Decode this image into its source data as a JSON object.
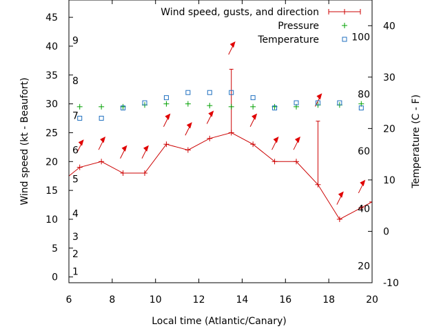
{
  "chart_data": {
    "type": "line",
    "xlabel": "Local time (Atlantic/Canary)",
    "ylabel_left": "Wind speed (kt - Beaufort)",
    "ylabel_right": "Temperature (C - F)",
    "x_ticks": [
      6,
      8,
      10,
      12,
      14,
      16,
      18,
      20
    ],
    "xlim": [
      6,
      20
    ],
    "y_left_ticks": [
      0,
      5,
      10,
      15,
      20,
      25,
      30,
      35,
      40,
      45
    ],
    "ylim_left": [
      -1,
      48
    ],
    "y_right_ticks": [
      -10,
      0,
      10,
      20,
      30,
      40
    ],
    "ylim_right": [
      -10,
      45
    ],
    "beaufort_labels": [
      {
        "label": "1",
        "kt": 1
      },
      {
        "label": "2",
        "kt": 4
      },
      {
        "label": "3",
        "kt": 7
      },
      {
        "label": "4",
        "kt": 11
      },
      {
        "label": "5",
        "kt": 17
      },
      {
        "label": "6",
        "kt": 22
      },
      {
        "label": "7",
        "kt": 28
      },
      {
        "label": "8",
        "kt": 34
      },
      {
        "label": "9",
        "kt": 41
      }
    ],
    "fahrenheit_labels": [
      {
        "label": "20",
        "celsius": -6.7
      },
      {
        "label": "40",
        "celsius": 4.4
      },
      {
        "label": "60",
        "celsius": 15.6
      },
      {
        "label": "80",
        "celsius": 26.7
      },
      {
        "label": "100",
        "celsius": 37.8
      }
    ],
    "legend_placement": "top-right",
    "series": [
      {
        "name": "Wind speed, gusts, and direction",
        "color": "#cc0000",
        "x": [
          5.5,
          6.5,
          7.5,
          8.5,
          9.5,
          10.5,
          11.5,
          12.5,
          13.5,
          14.5,
          15.5,
          16.5,
          17.5,
          18.5,
          19.5,
          20
        ],
        "values": [
          16,
          19,
          20,
          18,
          18,
          23,
          22,
          24,
          25,
          23,
          20,
          20,
          16,
          10,
          12,
          13
        ],
        "gusts": [
          {
            "x": 13.5,
            "low": 25,
            "high": 36
          },
          {
            "x": 17.5,
            "low": 16,
            "high": 27
          }
        ],
        "direction_arrows": [
          {
            "x": 6.5,
            "kt": 22.5
          },
          {
            "x": 7.5,
            "kt": 23
          },
          {
            "x": 8.5,
            "kt": 21.5
          },
          {
            "x": 9.5,
            "kt": 21.5
          },
          {
            "x": 10.5,
            "kt": 27
          },
          {
            "x": 11.5,
            "kt": 25.5
          },
          {
            "x": 12.5,
            "kt": 27.5
          },
          {
            "x": 13.5,
            "kt": 39.5
          },
          {
            "x": 14.5,
            "kt": 27
          },
          {
            "x": 15.5,
            "kt": 23
          },
          {
            "x": 16.5,
            "kt": 23
          },
          {
            "x": 17.5,
            "kt": 30.5
          },
          {
            "x": 18.5,
            "kt": 13.5
          },
          {
            "x": 19.5,
            "kt": 15.5
          }
        ]
      },
      {
        "name": "Pressure",
        "color": "#00a000",
        "marker": "plus",
        "x": [
          6.5,
          7.5,
          8.5,
          9.5,
          10.5,
          11.5,
          12.5,
          13.5,
          14.5,
          15.5,
          16.5,
          17.5,
          18.5,
          19.5
        ],
        "values": [
          29.5,
          29.5,
          29.5,
          29.8,
          30,
          30,
          29.7,
          29.5,
          29.5,
          29.5,
          29.5,
          29.8,
          29.8,
          30
        ]
      },
      {
        "name": "Temperature",
        "color": "#1f6fbf",
        "marker": "square",
        "x": [
          6.5,
          7.5,
          8.5,
          9.5,
          10.5,
          11.5,
          12.5,
          13.5,
          14.5,
          15.5,
          16.5,
          17.5,
          18.5,
          19.5
        ],
        "values_celsius": [
          22,
          22,
          24,
          25,
          26,
          27,
          27,
          27,
          26,
          24,
          25,
          25,
          25,
          24
        ]
      }
    ]
  }
}
